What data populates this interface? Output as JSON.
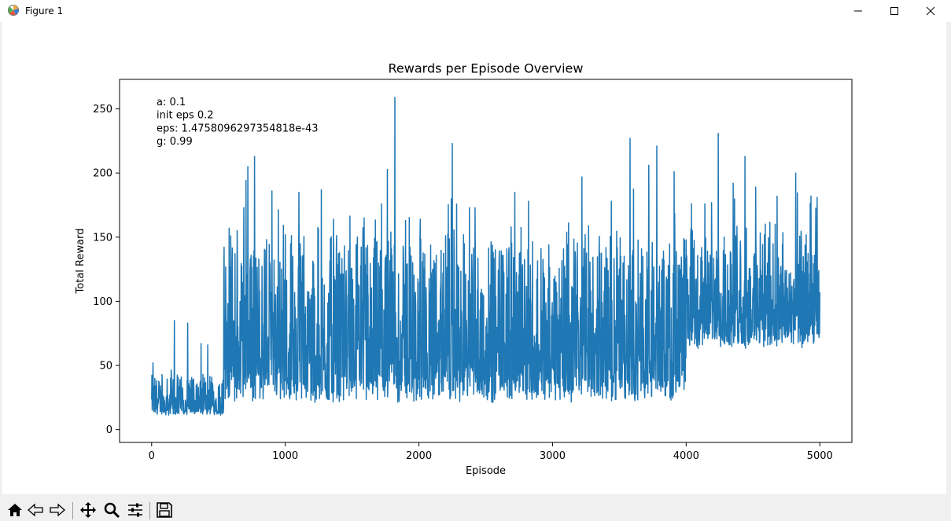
{
  "window": {
    "title": "Figure 1"
  },
  "toolbar": {
    "buttons": [
      "home-icon",
      "back-icon",
      "forward-icon",
      "pan-icon",
      "zoom-icon",
      "configure-icon",
      "save-icon"
    ]
  },
  "chart_data": {
    "type": "line",
    "title": "Rewards per Episode Overview",
    "xlabel": "Episode",
    "ylabel": "Total Reward",
    "xlim": [
      -240,
      5240
    ],
    "ylim": [
      -10,
      273
    ],
    "x_ticks": [
      0,
      1000,
      2000,
      3000,
      4000,
      5000
    ],
    "x_tick_labels": [
      "0",
      "1000",
      "2000",
      "3000",
      "4000",
      "5000"
    ],
    "y_ticks": [
      0,
      50,
      100,
      150,
      200,
      250
    ],
    "y_tick_labels": [
      "0",
      "50",
      "100",
      "150",
      "200",
      "250"
    ],
    "annotation_lines": [
      "a: 0.1",
      "init eps 0.2",
      "eps: 1.4758096297354818e-43",
      "g: 0.99"
    ],
    "grid": false,
    "line_color": "#1f77b4",
    "series": [
      {
        "episodes": 5000,
        "phases": [
          {
            "x": [
              0,
              540
            ],
            "base": 13,
            "spread": 18,
            "min": 8
          },
          {
            "x": [
              540,
              4000
            ],
            "base": 30,
            "spread": 75,
            "min": 10
          },
          {
            "x": [
              4000,
              5000
            ],
            "base": 70,
            "spread": 55,
            "min": 40
          }
        ],
        "peaks": [
          [
            10,
            52
          ],
          [
            75,
            108
          ],
          [
            170,
            85
          ],
          [
            270,
            83
          ],
          [
            370,
            67
          ],
          [
            420,
            66
          ],
          [
            560,
            84
          ],
          [
            580,
            157
          ],
          [
            640,
            155
          ],
          [
            690,
            173
          ],
          [
            720,
            205
          ],
          [
            770,
            213
          ],
          [
            900,
            186
          ],
          [
            1270,
            187
          ],
          [
            1360,
            164
          ],
          [
            1540,
            150
          ],
          [
            1720,
            176
          ],
          [
            1820,
            259
          ],
          [
            1900,
            163
          ],
          [
            2010,
            164
          ],
          [
            2250,
            223
          ],
          [
            2420,
            173
          ],
          [
            2690,
            158
          ],
          [
            2820,
            178
          ],
          [
            3120,
            161
          ],
          [
            3220,
            197
          ],
          [
            3270,
            159
          ],
          [
            3440,
            178
          ],
          [
            3580,
            227
          ],
          [
            3720,
            206
          ],
          [
            3780,
            221
          ],
          [
            3910,
            201
          ],
          [
            4040,
            176
          ],
          [
            4140,
            176
          ],
          [
            4240,
            231
          ],
          [
            4440,
            213
          ],
          [
            4520,
            189
          ],
          [
            4680,
            182
          ],
          [
            4820,
            200
          ],
          [
            4980,
            181
          ],
          [
            5000,
            107
          ]
        ]
      }
    ]
  }
}
